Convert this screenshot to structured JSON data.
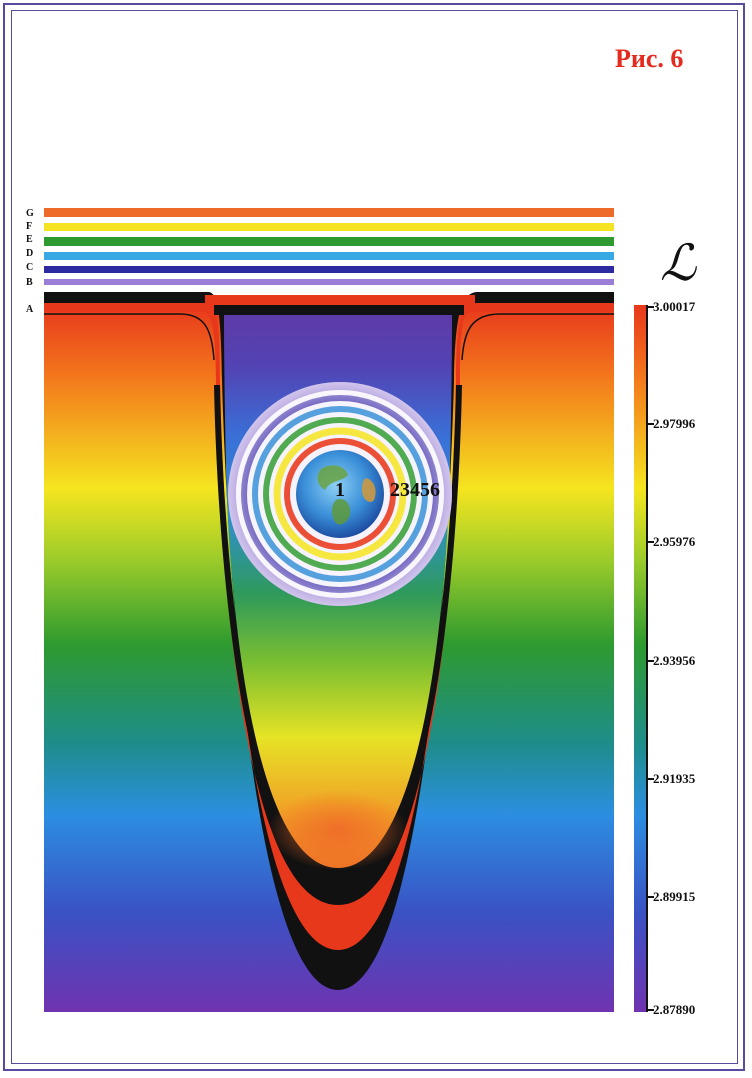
{
  "figure": {
    "title": "Рис. 6"
  },
  "layers": [
    "G",
    "F",
    "E",
    "D",
    "C",
    "B",
    "A"
  ],
  "colorbar": {
    "symbol": "ℒ",
    "ticks": [
      "3.00017",
      "2.97996",
      "2.95976",
      "2.93956",
      "2.91935",
      "2.89915",
      "2.87890"
    ]
  },
  "regions": {
    "inner": "1",
    "outer": "23456"
  }
}
